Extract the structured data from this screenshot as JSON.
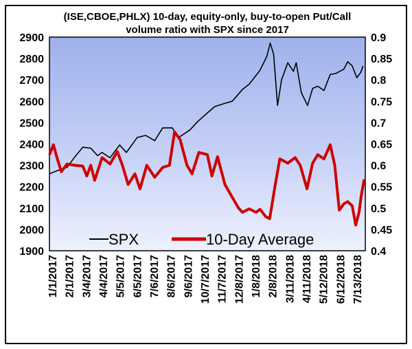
{
  "chart_data": {
    "type": "line",
    "title_lines": [
      "(ISE,CBOE,PHLX) 10-day, equity-only, buy-to-open Put/Call",
      "volume ratio with SPX since 2017"
    ],
    "x_tick_labels": [
      "1/1/2017",
      "2/1/2017",
      "3/4/2017",
      "4/4/2017",
      "5/5/2017",
      "6/5/2017",
      "7/6/2017",
      "8/6/2017",
      "9/6/2017",
      "10/7/2017",
      "11/7/2017",
      "12/8/2017",
      "1/8/2018",
      "2/8/2018",
      "3/11/2018",
      "4/11/2018",
      "5/12/2018",
      "6/12/2018",
      "7/13/2018"
    ],
    "x_range": [
      "2017-01-01",
      "2018-07-13"
    ],
    "left_axis": {
      "ylim": [
        1900,
        2900
      ],
      "ticks": [
        "1900",
        "2000",
        "2100",
        "2200",
        "2300",
        "2400",
        "2500",
        "2600",
        "2700",
        "2800",
        "2900"
      ]
    },
    "right_axis": {
      "ylim": [
        0.4,
        0.9
      ],
      "ticks": [
        "0.4",
        "0.45",
        "0.5",
        "0.55",
        "0.6",
        "0.65",
        "0.7",
        "0.75",
        "0.8",
        "0.85",
        "0.9"
      ]
    },
    "grid": false,
    "legend": {
      "placement": "bottom",
      "entries": [
        "SPX",
        "10-Day Average"
      ]
    },
    "series": [
      {
        "name": "SPX",
        "axis": "left",
        "color": "#000000",
        "points": [
          [
            "2017-01-01",
            2260
          ],
          [
            "2017-01-15",
            2275
          ],
          [
            "2017-02-01",
            2290
          ],
          [
            "2017-02-15",
            2340
          ],
          [
            "2017-03-01",
            2385
          ],
          [
            "2017-03-15",
            2380
          ],
          [
            "2017-03-27",
            2345
          ],
          [
            "2017-04-04",
            2360
          ],
          [
            "2017-04-18",
            2335
          ],
          [
            "2017-05-05",
            2395
          ],
          [
            "2017-05-17",
            2360
          ],
          [
            "2017-06-05",
            2430
          ],
          [
            "2017-06-20",
            2440
          ],
          [
            "2017-07-06",
            2415
          ],
          [
            "2017-07-20",
            2475
          ],
          [
            "2017-08-06",
            2475
          ],
          [
            "2017-08-17",
            2430
          ],
          [
            "2017-09-06",
            2465
          ],
          [
            "2017-09-20",
            2505
          ],
          [
            "2017-10-07",
            2545
          ],
          [
            "2017-10-20",
            2575
          ],
          [
            "2017-11-07",
            2590
          ],
          [
            "2017-11-20",
            2600
          ],
          [
            "2017-12-08",
            2655
          ],
          [
            "2017-12-20",
            2680
          ],
          [
            "2018-01-08",
            2745
          ],
          [
            "2018-01-20",
            2810
          ],
          [
            "2018-01-26",
            2872
          ],
          [
            "2018-02-01",
            2820
          ],
          [
            "2018-02-08",
            2580
          ],
          [
            "2018-02-15",
            2700
          ],
          [
            "2018-02-26",
            2780
          ],
          [
            "2018-03-08",
            2740
          ],
          [
            "2018-03-13",
            2780
          ],
          [
            "2018-03-22",
            2640
          ],
          [
            "2018-04-02",
            2580
          ],
          [
            "2018-04-11",
            2660
          ],
          [
            "2018-04-20",
            2670
          ],
          [
            "2018-05-01",
            2650
          ],
          [
            "2018-05-12",
            2725
          ],
          [
            "2018-05-22",
            2730
          ],
          [
            "2018-06-05",
            2750
          ],
          [
            "2018-06-12",
            2785
          ],
          [
            "2018-06-20",
            2765
          ],
          [
            "2018-06-28",
            2710
          ],
          [
            "2018-07-05",
            2735
          ],
          [
            "2018-07-09",
            2765
          ]
        ]
      },
      {
        "name": "10-Day Average",
        "axis": "right",
        "color": "#d00000",
        "points": [
          [
            "2017-01-01",
            0.625
          ],
          [
            "2017-01-08",
            0.648
          ],
          [
            "2017-01-15",
            0.615
          ],
          [
            "2017-01-22",
            0.585
          ],
          [
            "2017-02-01",
            0.603
          ],
          [
            "2017-02-15",
            0.6
          ],
          [
            "2017-03-01",
            0.598
          ],
          [
            "2017-03-08",
            0.575
          ],
          [
            "2017-03-15",
            0.6
          ],
          [
            "2017-03-22",
            0.565
          ],
          [
            "2017-04-04",
            0.618
          ],
          [
            "2017-04-18",
            0.603
          ],
          [
            "2017-05-01",
            0.632
          ],
          [
            "2017-05-10",
            0.6
          ],
          [
            "2017-05-20",
            0.555
          ],
          [
            "2017-06-01",
            0.58
          ],
          [
            "2017-06-10",
            0.545
          ],
          [
            "2017-06-22",
            0.6
          ],
          [
            "2017-07-06",
            0.572
          ],
          [
            "2017-07-20",
            0.595
          ],
          [
            "2017-08-01",
            0.6
          ],
          [
            "2017-08-10",
            0.678
          ],
          [
            "2017-08-20",
            0.66
          ],
          [
            "2017-09-01",
            0.6
          ],
          [
            "2017-09-10",
            0.58
          ],
          [
            "2017-09-22",
            0.63
          ],
          [
            "2017-10-07",
            0.625
          ],
          [
            "2017-10-15",
            0.575
          ],
          [
            "2017-10-25",
            0.62
          ],
          [
            "2017-11-07",
            0.555
          ],
          [
            "2017-11-20",
            0.525
          ],
          [
            "2017-12-01",
            0.5
          ],
          [
            "2017-12-08",
            0.49
          ],
          [
            "2017-12-20",
            0.498
          ],
          [
            "2018-01-01",
            0.49
          ],
          [
            "2018-01-08",
            0.497
          ],
          [
            "2018-01-18",
            0.48
          ],
          [
            "2018-01-25",
            0.475
          ],
          [
            "2018-02-04",
            0.555
          ],
          [
            "2018-02-12",
            0.615
          ],
          [
            "2018-02-26",
            0.605
          ],
          [
            "2018-03-11",
            0.618
          ],
          [
            "2018-03-20",
            0.6
          ],
          [
            "2018-04-01",
            0.545
          ],
          [
            "2018-04-11",
            0.605
          ],
          [
            "2018-04-20",
            0.625
          ],
          [
            "2018-05-01",
            0.615
          ],
          [
            "2018-05-12",
            0.648
          ],
          [
            "2018-05-20",
            0.6
          ],
          [
            "2018-05-28",
            0.495
          ],
          [
            "2018-06-05",
            0.51
          ],
          [
            "2018-06-12",
            0.515
          ],
          [
            "2018-06-20",
            0.505
          ],
          [
            "2018-06-26",
            0.46
          ],
          [
            "2018-07-02",
            0.49
          ],
          [
            "2018-07-06",
            0.53
          ],
          [
            "2018-07-11",
            0.567
          ]
        ]
      }
    ]
  }
}
